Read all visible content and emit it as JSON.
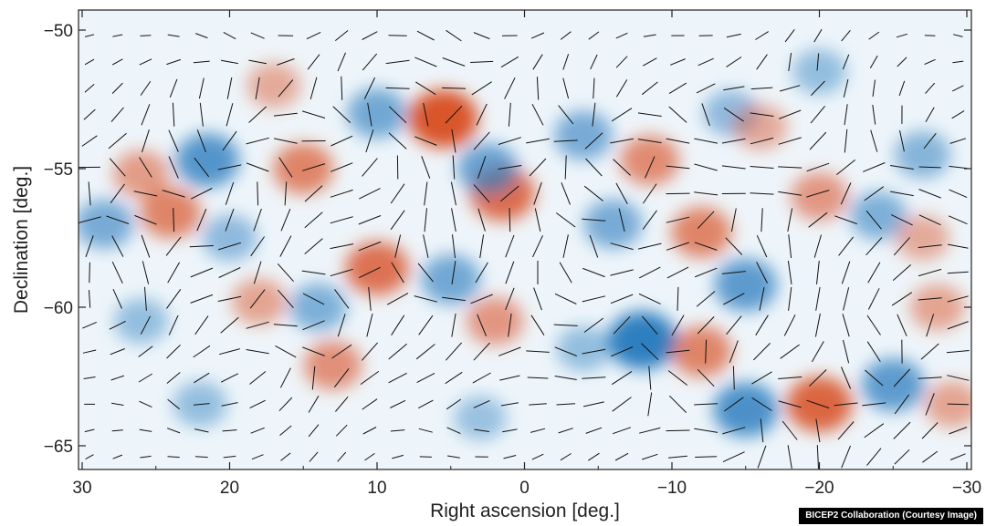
{
  "chart_data": {
    "type": "heatmap",
    "description": "polarization map with E/B-mode temperature-like blobs and headless vector line segments",
    "xlabel": "Right ascension [deg.]",
    "ylabel": "Declination [deg.]",
    "xlim": [
      30.5,
      -30.5
    ],
    "ylim": [
      -65.8,
      -49.5
    ],
    "x_ticks": [
      30,
      20,
      10,
      0,
      -10,
      -20,
      -30
    ],
    "x_tick_labels": [
      "30",
      "20",
      "10",
      "0",
      "−10",
      "−20",
      "−30"
    ],
    "y_ticks": [
      -50,
      -55,
      -60,
      -65
    ],
    "y_tick_labels": [
      "−50",
      "−55",
      "−60",
      "−65"
    ],
    "colors": {
      "positive": "#d9542b",
      "negative": "#2f7fc0",
      "background": "#eef5fa",
      "vectors": "#111111"
    },
    "blobs": [
      {
        "ra": 5.5,
        "dec": -53.2,
        "amp": 1.0
      },
      {
        "ra": 21.5,
        "dec": -54.7,
        "amp": -0.75
      },
      {
        "ra": 15,
        "dec": -55.0,
        "amp": 0.6
      },
      {
        "ra": 24,
        "dec": -56.6,
        "amp": 0.6
      },
      {
        "ra": 26,
        "dec": -55.2,
        "amp": 0.4
      },
      {
        "ra": 28.5,
        "dec": -57.0,
        "amp": -0.5
      },
      {
        "ra": 10,
        "dec": -58.6,
        "amp": 0.75
      },
      {
        "ra": 1.5,
        "dec": -55.9,
        "amp": 0.8
      },
      {
        "ra": 2.5,
        "dec": -55.0,
        "amp": -0.6
      },
      {
        "ra": 10,
        "dec": -53.0,
        "amp": -0.55
      },
      {
        "ra": 5,
        "dec": -59.0,
        "amp": -0.55
      },
      {
        "ra": -8,
        "dec": -61.2,
        "amp": -1.0
      },
      {
        "ra": -12,
        "dec": -61.6,
        "amp": 0.6
      },
      {
        "ra": -12,
        "dec": -57.3,
        "amp": 0.6
      },
      {
        "ra": -15,
        "dec": -59.2,
        "amp": -0.7
      },
      {
        "ra": -8.5,
        "dec": -54.7,
        "amp": 0.55
      },
      {
        "ra": -4,
        "dec": -53.8,
        "amp": -0.5
      },
      {
        "ra": -15,
        "dec": -63.7,
        "amp": -0.8
      },
      {
        "ra": -20,
        "dec": -63.5,
        "amp": 0.85
      },
      {
        "ra": -25,
        "dec": -62.8,
        "amp": -0.7
      },
      {
        "ra": -20,
        "dec": -56.0,
        "amp": 0.45
      },
      {
        "ra": -24,
        "dec": -56.7,
        "amp": -0.45
      },
      {
        "ra": -27,
        "dec": -54.5,
        "amp": -0.4
      },
      {
        "ra": 14,
        "dec": -60.0,
        "amp": -0.45
      },
      {
        "ra": 18,
        "dec": -59.8,
        "amp": 0.35
      },
      {
        "ra": 13,
        "dec": -62.1,
        "amp": 0.5
      },
      {
        "ra": 2,
        "dec": -60.5,
        "amp": 0.45
      },
      {
        "ra": -28,
        "dec": -60.0,
        "amp": 0.35
      },
      {
        "ra": -14,
        "dec": -53.0,
        "amp": -0.35
      },
      {
        "ra": -16,
        "dec": -53.5,
        "amp": 0.3
      },
      {
        "ra": -4,
        "dec": -61.5,
        "amp": -0.3
      },
      {
        "ra": -27,
        "dec": -57.5,
        "amp": 0.3
      },
      {
        "ra": 22,
        "dec": -63.5,
        "amp": -0.3
      },
      {
        "ra": 3,
        "dec": -64.0,
        "amp": -0.25
      },
      {
        "ra": -29,
        "dec": -63.5,
        "amp": 0.35
      },
      {
        "ra": 26,
        "dec": -60.5,
        "amp": -0.3
      },
      {
        "ra": 17,
        "dec": -52.0,
        "amp": 0.3
      },
      {
        "ra": -20,
        "dec": -51.5,
        "amp": -0.3
      },
      {
        "ra": -6,
        "dec": -57.0,
        "amp": -0.5
      },
      {
        "ra": 20,
        "dec": -57.5,
        "amp": -0.35
      }
    ],
    "grid": false,
    "legend": "none"
  },
  "credit": "BICEP2 Collaboration (Courtesy Image)"
}
